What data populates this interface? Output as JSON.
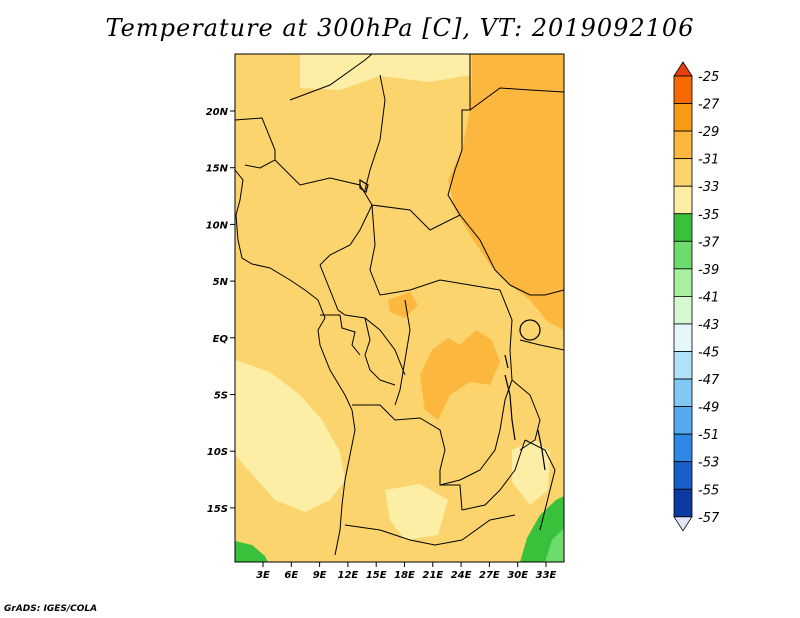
{
  "title": "Temperature at 300hPa [C], VT: 2019092106",
  "credit": "GrADS: IGES/COLA",
  "map": {
    "lat_labels": [
      "20N",
      "15N",
      "10N",
      "5N",
      "EQ",
      "5S",
      "10S",
      "15S"
    ],
    "lon_labels": [
      "3E",
      "6E",
      "9E",
      "12E",
      "15E",
      "18E",
      "21E",
      "24E",
      "27E",
      "30E",
      "33E"
    ]
  },
  "colorbar": {
    "labels": [
      "-25",
      "-27",
      "-29",
      "-31",
      "-33",
      "-35",
      "-37",
      "-39",
      "-41",
      "-43",
      "-45",
      "-47",
      "-49",
      "-51",
      "-53",
      "-55",
      "-57"
    ],
    "colors": [
      "#e8400c",
      "#f56a00",
      "#f79a14",
      "#fbb73e",
      "#fcd46d",
      "#fdeea6",
      "#39c13c",
      "#6cdd6c",
      "#a6f0a0",
      "#d6f8d0",
      "#e4f8fc",
      "#b2e2fa",
      "#82c8f5",
      "#55a9ef",
      "#2f87e6",
      "#1a5fc9",
      "#0b3aa0",
      "#0a1570",
      "#e2e4f8"
    ]
  },
  "field_colors": {
    "base": "#fcd46d",
    "warm": "#fbb73e",
    "cool": "#fdeea6",
    "green": "#39c13c",
    "lightgreen": "#6cdd6c"
  }
}
